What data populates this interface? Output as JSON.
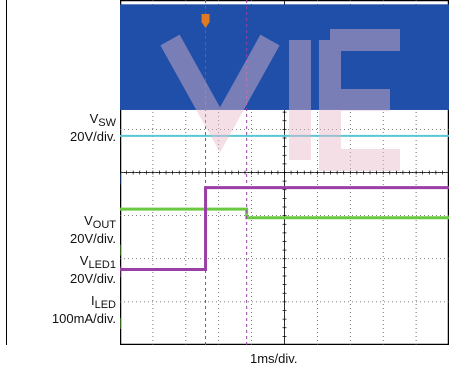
{
  "chart_data": {
    "type": "line",
    "xlabel": "1ms/div.",
    "x_divisions": 10,
    "y_divisions": 8,
    "channels": [
      {
        "marker": "1",
        "name_main": "V",
        "name_sub": "SW",
        "scale": "20V/div.",
        "color": "#1f4fa8",
        "ground_div": 3.85
      },
      {
        "marker": "2",
        "name_main": "V",
        "name_sub": "OUT",
        "scale": "20V/div.",
        "color": "#6bc940",
        "ground_div": 2.2
      },
      {
        "marker": "3",
        "name_main": "V",
        "name_sub": "LED1",
        "scale": "20V/div.",
        "color": "#9a3fa6",
        "ground_div": 1.7
      },
      {
        "marker": "4",
        "name_main": "I",
        "name_sub": "LED",
        "scale": "100mA/div.",
        "color": "#6bc940",
        "ground_div": 0.5
      }
    ],
    "traces": {
      "vsw": {
        "type": "band",
        "x": [
          0,
          10
        ],
        "low_div": 5.45,
        "high_div": 7.9
      },
      "cyan": {
        "type": "flat",
        "x": [
          0,
          10
        ],
        "level_div": 4.85
      },
      "vout": {
        "type": "step",
        "x": [
          0,
          3.85,
          3.85,
          10
        ],
        "y_div": [
          3.15,
          3.15,
          2.95,
          2.95
        ]
      },
      "vled1": {
        "type": "step",
        "x": [
          0,
          2.6,
          2.6,
          10
        ],
        "y_div": [
          1.75,
          1.75,
          3.65,
          3.65
        ]
      },
      "cursor_x_div": [
        2.6,
        3.85
      ],
      "trigger_x_div": 2.6
    },
    "colors": {
      "vsw": "#1f4fa8",
      "cyan": "#5bc6d6",
      "vout": "#6bc940",
      "vled1": "#9a3fa6",
      "grid": "#555555",
      "trigger": "#e07a20"
    }
  }
}
